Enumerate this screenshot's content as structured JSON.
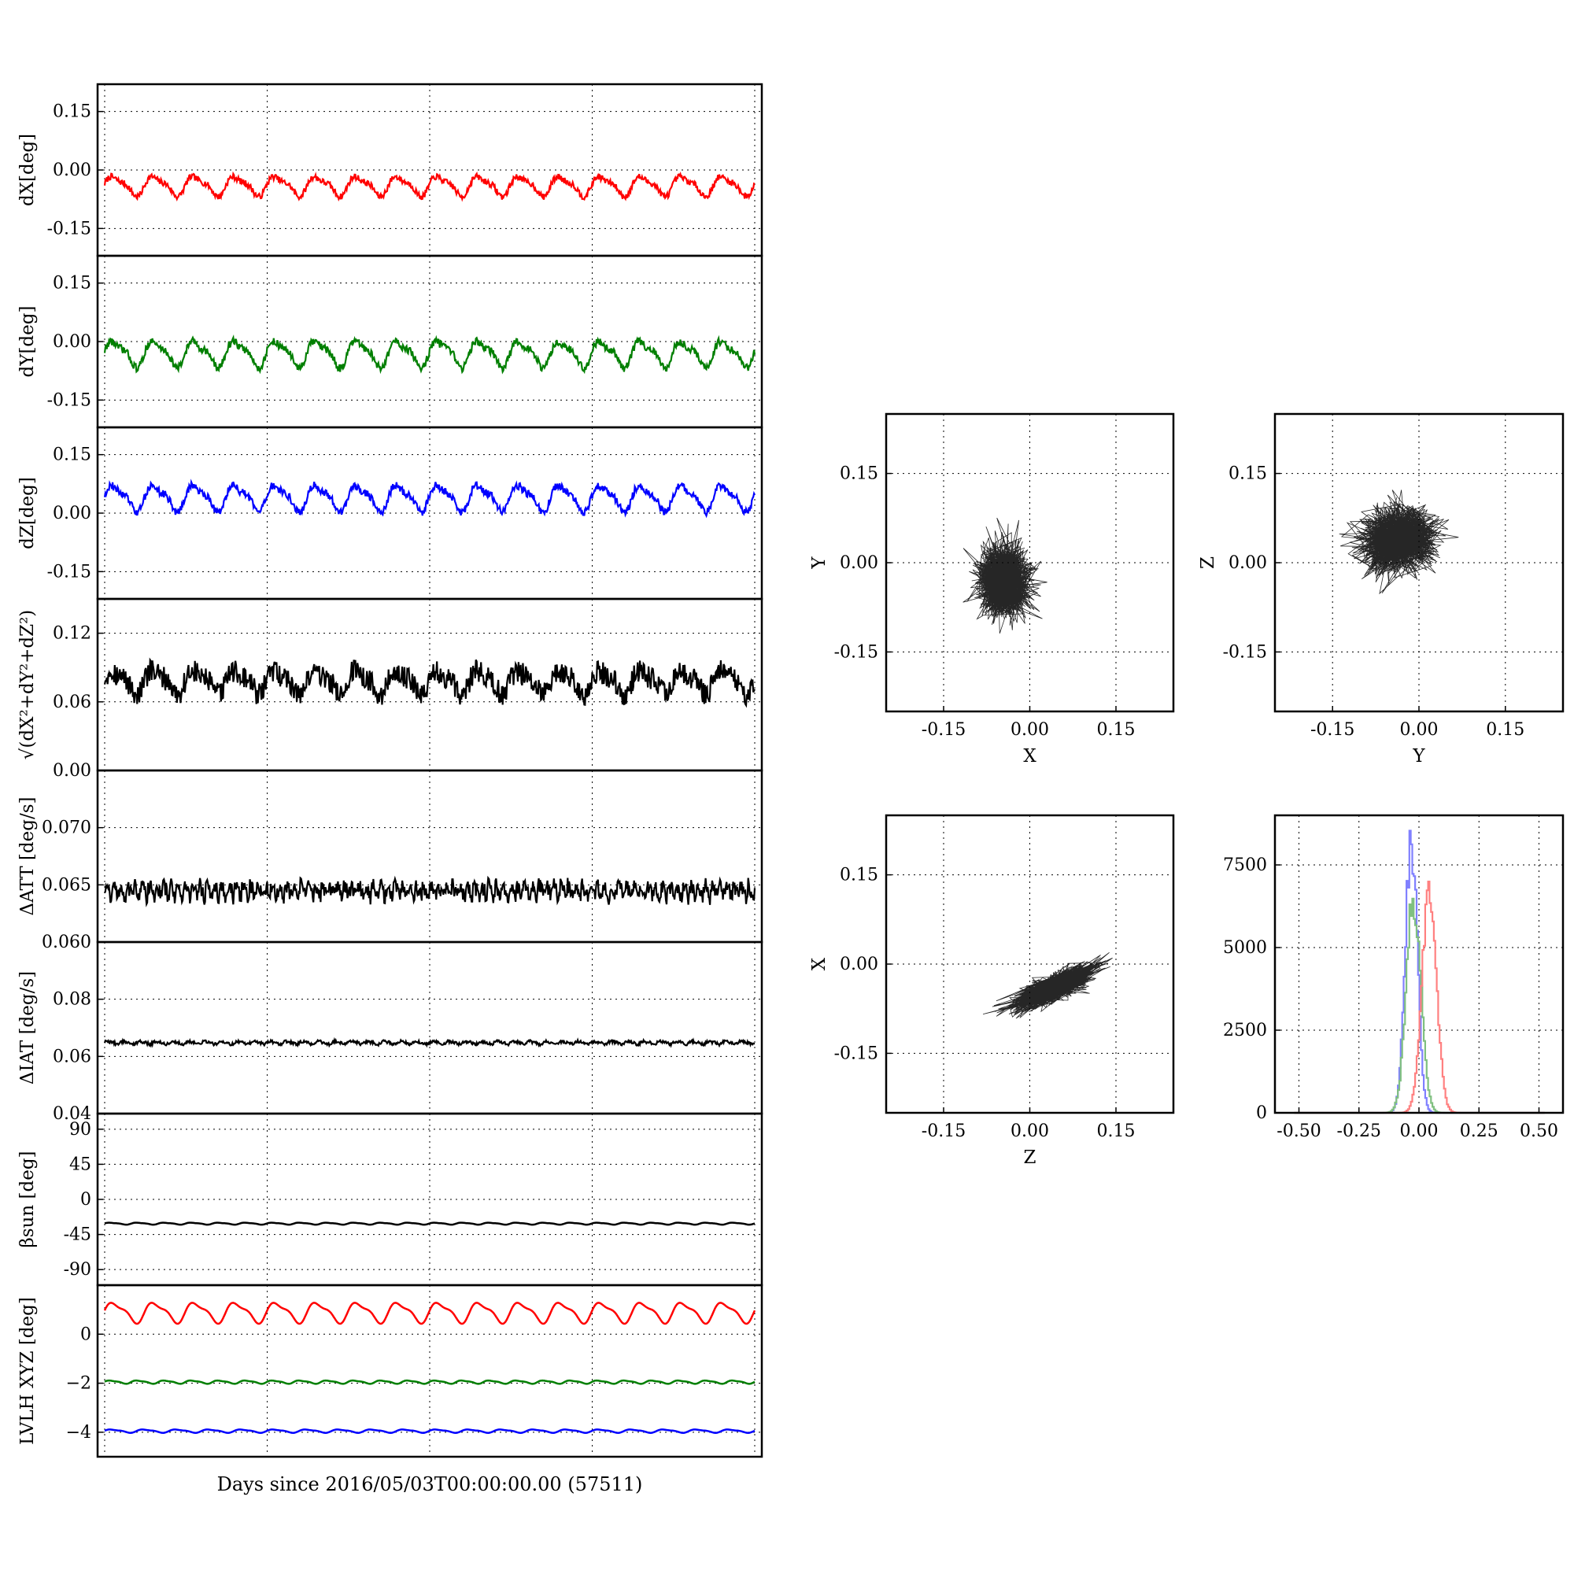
{
  "figure": {
    "bottom_xlabel": "Days since 2016/05/03T00:00:00.00 (57511)"
  },
  "chart_data": [
    {
      "id": "ts-dx",
      "type": "line",
      "ylabel": "dX[deg]",
      "ylim": [
        -0.22,
        0.22
      ],
      "yticks": [
        "0.15",
        "0.00",
        "-0.15"
      ],
      "yticks_values": [
        0.15,
        0.0,
        -0.15
      ],
      "grid": true,
      "series": [
        {
          "color": "#ff0000",
          "approx": {
            "mean": -0.04,
            "amp": 0.03,
            "periods": 16,
            "noise": 0.008
          }
        }
      ]
    },
    {
      "id": "ts-dy",
      "type": "line",
      "ylabel": "dY[deg]",
      "ylim": [
        -0.22,
        0.22
      ],
      "yticks": [
        "0.15",
        "0.00",
        "-0.15"
      ],
      "yticks_values": [
        0.15,
        0.0,
        -0.15
      ],
      "grid": true,
      "series": [
        {
          "color": "#007f00",
          "approx": {
            "mean": -0.03,
            "amp": 0.04,
            "periods": 16,
            "noise": 0.01
          }
        }
      ]
    },
    {
      "id": "ts-dz",
      "type": "line",
      "ylabel": "dZ[deg]",
      "ylim": [
        -0.22,
        0.22
      ],
      "yticks": [
        "0.15",
        "0.00",
        "-0.15"
      ],
      "yticks_values": [
        0.15,
        0.0,
        -0.15
      ],
      "grid": true,
      "series": [
        {
          "color": "#0000ff",
          "approx": {
            "mean": 0.04,
            "amp": 0.04,
            "periods": 16,
            "noise": 0.01
          }
        }
      ]
    },
    {
      "id": "ts-dr",
      "type": "line",
      "ylabel": "√(dX²+dY²+dZ²)",
      "ylim": [
        0.0,
        0.15
      ],
      "yticks": [
        "0.12",
        "0.06",
        "0.00"
      ],
      "yticks_values": [
        0.12,
        0.06,
        0.0
      ],
      "grid": true,
      "series": [
        {
          "color": "#000000",
          "approx": {
            "mean": 0.078,
            "amp": 0.012,
            "periods": 16,
            "noise": 0.01
          }
        }
      ]
    },
    {
      "id": "ts-datt",
      "type": "line",
      "ylabel": "ΔATT [deg/s]",
      "ylim": [
        0.06,
        0.075
      ],
      "yticks": [
        "0.070",
        "0.065",
        "0.060"
      ],
      "yticks_values": [
        0.07,
        0.065,
        0.06
      ],
      "grid": true,
      "series": [
        {
          "color": "#000000",
          "approx": {
            "mean": 0.0645,
            "amp": 0.0006,
            "periods": 90,
            "noise": 0.0007
          }
        }
      ]
    },
    {
      "id": "ts-diat",
      "type": "line",
      "ylabel": "ΔIAT [deg/s]",
      "ylim": [
        0.04,
        0.1
      ],
      "yticks": [
        "0.08",
        "0.06",
        "0.04"
      ],
      "yticks_values": [
        0.08,
        0.06,
        0.04
      ],
      "grid": true,
      "series": [
        {
          "color": "#000000",
          "approx": {
            "mean": 0.0648,
            "amp": 0.0006,
            "periods": 40,
            "noise": 0.0005
          }
        }
      ]
    },
    {
      "id": "ts-beta",
      "type": "line",
      "ylabel": "βsun [deg]",
      "ylim": [
        -110,
        110
      ],
      "yticks": [
        "90",
        "45",
        "0",
        "-45",
        "-90"
      ],
      "yticks_values": [
        90,
        45,
        0,
        -45,
        -90
      ],
      "grid": true,
      "series": [
        {
          "color": "#000000",
          "approx": {
            "mean": -31,
            "amp": 1.5,
            "periods": 24,
            "noise": 0.0
          }
        }
      ]
    },
    {
      "id": "ts-lvlh",
      "type": "line",
      "ylabel": "LVLH XYZ [deg]",
      "ylim": [
        -5,
        2
      ],
      "yticks": [
        "0",
        "−2",
        "−4"
      ],
      "yticks_values": [
        0,
        -2,
        -4
      ],
      "grid": true,
      "series": [
        {
          "color": "#ff0000",
          "approx": {
            "mean": 0.9,
            "amp": 0.5,
            "periods": 16,
            "noise": 0.0
          }
        },
        {
          "color": "#007f00",
          "approx": {
            "mean": -1.95,
            "amp": 0.08,
            "periods": 24,
            "noise": 0.0
          }
        },
        {
          "color": "#0000ff",
          "approx": {
            "mean": -3.95,
            "amp": 0.08,
            "periods": 20,
            "noise": 0.0
          }
        }
      ]
    },
    {
      "id": "sc-xy",
      "type": "scatter",
      "xlabel": "X",
      "ylabel": "Y",
      "xlim": [
        -0.25,
        0.25
      ],
      "ylim": [
        -0.25,
        0.25
      ],
      "xticks": [
        "-0.15",
        "0.00",
        "0.15"
      ],
      "xticks_values": [
        -0.15,
        0.0,
        0.15
      ],
      "yticks": [
        "0.15",
        "0.00",
        "-0.15"
      ],
      "yticks_values": [
        0.15,
        0.0,
        -0.15
      ],
      "grid": true,
      "cloud": {
        "cx": -0.045,
        "cy": -0.03,
        "sx": 0.021,
        "sy": 0.028,
        "rho": 0.0
      }
    },
    {
      "id": "sc-yz",
      "type": "scatter",
      "xlabel": "Y",
      "ylabel": "Z",
      "xlim": [
        -0.25,
        0.25
      ],
      "ylim": [
        -0.25,
        0.25
      ],
      "xticks": [
        "-0.15",
        "0.00",
        "0.15"
      ],
      "xticks_values": [
        -0.15,
        0.0,
        0.15
      ],
      "yticks": [
        "0.15",
        "0.00",
        "-0.15"
      ],
      "yticks_values": [
        0.15,
        0.0,
        -0.15
      ],
      "grid": true,
      "cloud": {
        "cx": -0.035,
        "cy": 0.04,
        "sx": 0.03,
        "sy": 0.025,
        "rho": 0.1
      }
    },
    {
      "id": "sc-zx",
      "type": "scatter",
      "xlabel": "Z",
      "ylabel": "X",
      "xlim": [
        -0.25,
        0.25
      ],
      "ylim": [
        -0.25,
        0.25
      ],
      "xticks": [
        "-0.15",
        "0.00",
        "0.15"
      ],
      "xticks_values": [
        -0.15,
        0.0,
        0.15
      ],
      "yticks": [
        "0.15",
        "0.00",
        "-0.15"
      ],
      "yticks_values": [
        0.15,
        0.0,
        -0.15
      ],
      "grid": true,
      "cloud": {
        "cx": 0.04,
        "cy": -0.04,
        "sx": 0.035,
        "sy": 0.018,
        "rho": 0.8
      }
    },
    {
      "id": "hist-xyz",
      "type": "bar",
      "subtype": "histogram",
      "xlim": [
        -0.6,
        0.6
      ],
      "ylim": [
        0,
        9000
      ],
      "xticks": [
        "-0.50",
        "-0.25",
        "0.00",
        "0.25",
        "0.50"
      ],
      "xticks_values": [
        -0.5,
        -0.25,
        0.0,
        0.25,
        0.5
      ],
      "yticks": [
        "7500",
        "5000",
        "2500",
        "0"
      ],
      "yticks_values": [
        7500,
        5000,
        2500,
        0
      ],
      "grid": true,
      "series": [
        {
          "color": "#8080ff",
          "approx": {
            "mean": -0.035,
            "sd": 0.025,
            "peak": 8300
          }
        },
        {
          "color": "#80c080",
          "approx": {
            "mean": -0.025,
            "sd": 0.03,
            "peak": 6500
          }
        },
        {
          "color": "#ff8080",
          "approx": {
            "mean": 0.04,
            "sd": 0.03,
            "peak": 6900
          }
        }
      ]
    }
  ]
}
